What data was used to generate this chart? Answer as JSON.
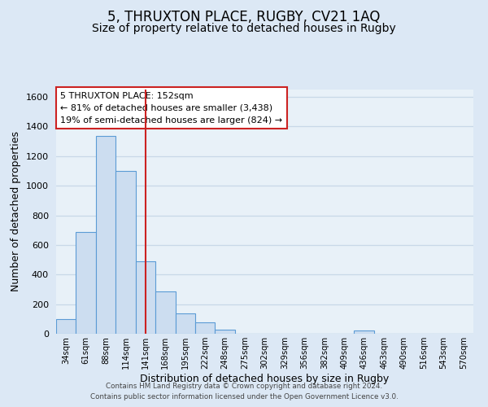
{
  "title": "5, THRUXTON PLACE, RUGBY, CV21 1AQ",
  "subtitle": "Size of property relative to detached houses in Rugby",
  "xlabel": "Distribution of detached houses by size in Rugby",
  "ylabel": "Number of detached properties",
  "bar_labels": [
    "34sqm",
    "61sqm",
    "88sqm",
    "114sqm",
    "141sqm",
    "168sqm",
    "195sqm",
    "222sqm",
    "248sqm",
    "275sqm",
    "302sqm",
    "329sqm",
    "356sqm",
    "382sqm",
    "409sqm",
    "436sqm",
    "463sqm",
    "490sqm",
    "516sqm",
    "543sqm",
    "570sqm"
  ],
  "bar_heights": [
    100,
    690,
    1335,
    1100,
    490,
    285,
    140,
    75,
    30,
    0,
    0,
    0,
    0,
    0,
    0,
    20,
    0,
    0,
    0,
    0,
    0
  ],
  "bar_color": "#ccddf0",
  "bar_edge_color": "#5b9bd5",
  "vline_x_index": 4.0,
  "vline_color": "#cc2222",
  "annotation_title": "5 THRUXTON PLACE: 152sqm",
  "annotation_line1": "← 81% of detached houses are smaller (3,438)",
  "annotation_line2": "19% of semi-detached houses are larger (824) →",
  "annotation_box_facecolor": "#ffffff",
  "annotation_box_edgecolor": "#cc2222",
  "ylim": [
    0,
    1650
  ],
  "yticks": [
    0,
    200,
    400,
    600,
    800,
    1000,
    1200,
    1400,
    1600
  ],
  "title_fontsize": 12,
  "subtitle_fontsize": 10,
  "footer_line1": "Contains HM Land Registry data © Crown copyright and database right 2024.",
  "footer_line2": "Contains public sector information licensed under the Open Government Licence v3.0.",
  "bg_color": "#dce8f5",
  "plot_bg_color": "#e8f1f8",
  "grid_color": "#c8d8e8",
  "underline_labels": [
    "141sqm",
    "168sqm"
  ]
}
